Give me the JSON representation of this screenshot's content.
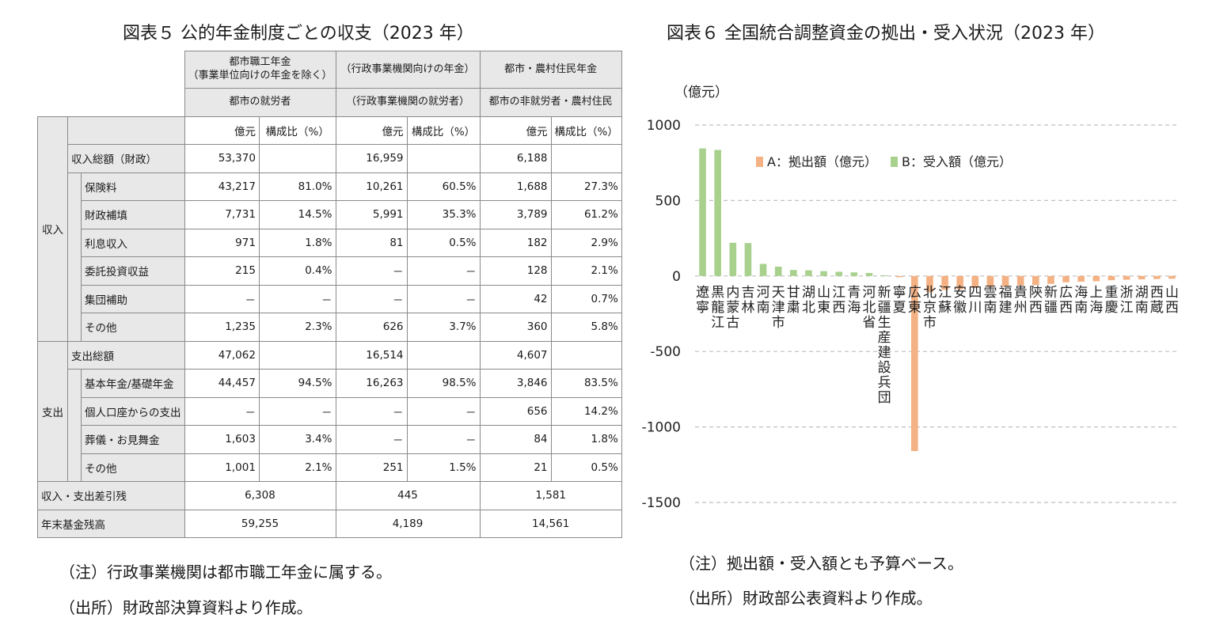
{
  "table_figure": {
    "title": "図表５ 公的年金制度ごとの収支（2023 年）",
    "column_groups": [
      {
        "name_line1": "都市職工年金",
        "name_line2": "（事業単位向けの年金を除く）",
        "subtitle": "都市の就労者"
      },
      {
        "name_line1": "（行政事業機関向けの年金）",
        "name_line2": "",
        "subtitle": "（行政事業機関の就労者）"
      },
      {
        "name_line1": "都市・農村住民年金",
        "name_line2": "",
        "subtitle": "都市の非就労者・農村住民"
      }
    ],
    "unit_label": "億元",
    "ratio_label": "構成比（%）",
    "income_section": "収入",
    "expense_section": "支出",
    "income_total": {
      "label": "収入総額（財政）",
      "values": [
        "53,370",
        "16,959",
        "6,188"
      ]
    },
    "income_rows": [
      {
        "label": "保険料",
        "cells": [
          "43,217",
          "81.0%",
          "10,261",
          "60.5%",
          "1,688",
          "27.3%"
        ]
      },
      {
        "label": "財政補填",
        "cells": [
          "7,731",
          "14.5%",
          "5,991",
          "35.3%",
          "3,789",
          "61.2%"
        ]
      },
      {
        "label": "利息収入",
        "cells": [
          "971",
          "1.8%",
          "81",
          "0.5%",
          "182",
          "2.9%"
        ]
      },
      {
        "label": "委託投資収益",
        "cells": [
          "215",
          "0.4%",
          "－",
          "－",
          "128",
          "2.1%"
        ]
      },
      {
        "label": "集団補助",
        "cells": [
          "－",
          "－",
          "－",
          "－",
          "42",
          "0.7%"
        ]
      },
      {
        "label": "その他",
        "cells": [
          "1,235",
          "2.3%",
          "626",
          "3.7%",
          "360",
          "5.8%"
        ]
      }
    ],
    "expense_total": {
      "label": "支出総額",
      "values": [
        "47,062",
        "16,514",
        "4,607"
      ]
    },
    "expense_rows": [
      {
        "label": "基本年金/基礎年金",
        "cells": [
          "44,457",
          "94.5%",
          "16,263",
          "98.5%",
          "3,846",
          "83.5%"
        ]
      },
      {
        "label": "個人口座からの支出",
        "cells": [
          "－",
          "－",
          "－",
          "－",
          "656",
          "14.2%"
        ]
      },
      {
        "label": "葬儀・お見舞金",
        "cells": [
          "1,603",
          "3.4%",
          "－",
          "－",
          "84",
          "1.8%"
        ]
      },
      {
        "label": "その他",
        "cells": [
          "1,001",
          "2.1%",
          "251",
          "1.5%",
          "21",
          "0.5%"
        ]
      }
    ],
    "balance": {
      "label": "収入・支出差引残",
      "values": [
        "6,308",
        "445",
        "1,581"
      ]
    },
    "fund": {
      "label": "年末基金残高",
      "values": [
        "59,255",
        "4,189",
        "14,561"
      ]
    },
    "note": "（注）行政事業機関は都市職工年金に属する。",
    "source": "（出所）財政部決算資料より作成。"
  },
  "chart_figure": {
    "title": "図表６ 全国統合調整資金の拠出・受入状況（2023 年）",
    "note": "（注）拠出額・受入額とも予算ベース。",
    "source": "（出所）財政部公表資料より作成。"
  },
  "chart_data": {
    "type": "bar",
    "unit_label": "（億元）",
    "ylim": [
      -1500,
      1000
    ],
    "yticks": [
      1000,
      500,
      0,
      -500,
      -1000,
      -1500
    ],
    "ytick_labels": [
      "1000",
      "500",
      "0",
      "-500",
      "-1000",
      "-1500"
    ],
    "grid": true,
    "legend_position": "top",
    "categories": [
      "遼寧",
      "黒龍江",
      "内蒙古",
      "吉林",
      "河南",
      "天津市",
      "甘粛",
      "湖北",
      "山東",
      "江西",
      "青海",
      "河北省",
      "新疆生産建設兵団",
      "寧夏",
      "広東",
      "北京市",
      "江蘇",
      "安徽",
      "四川",
      "雲南",
      "福建",
      "貴州",
      "陝西",
      "新疆",
      "広西",
      "海南",
      "上海",
      "重慶",
      "浙江",
      "湖南",
      "西蔵",
      "山西"
    ],
    "series": [
      {
        "name": "A：拠出額（億元）",
        "color": "#f4b183",
        "values": [
          0,
          0,
          0,
          0,
          0,
          0,
          0,
          0,
          0,
          0,
          0,
          0,
          0,
          -8,
          -1160,
          -108,
          -92,
          -88,
          -78,
          -72,
          -70,
          -62,
          -60,
          -52,
          -42,
          -38,
          -35,
          -28,
          -25,
          -22,
          -20,
          -18
        ]
      },
      {
        "name": "B：受入額（億元）",
        "color": "#a9d18e",
        "values": [
          845,
          835,
          220,
          218,
          80,
          62,
          40,
          38,
          32,
          28,
          24,
          20,
          5,
          0,
          0,
          0,
          0,
          0,
          0,
          0,
          0,
          0,
          0,
          0,
          0,
          0,
          0,
          0,
          0,
          0,
          0,
          0
        ]
      }
    ]
  }
}
